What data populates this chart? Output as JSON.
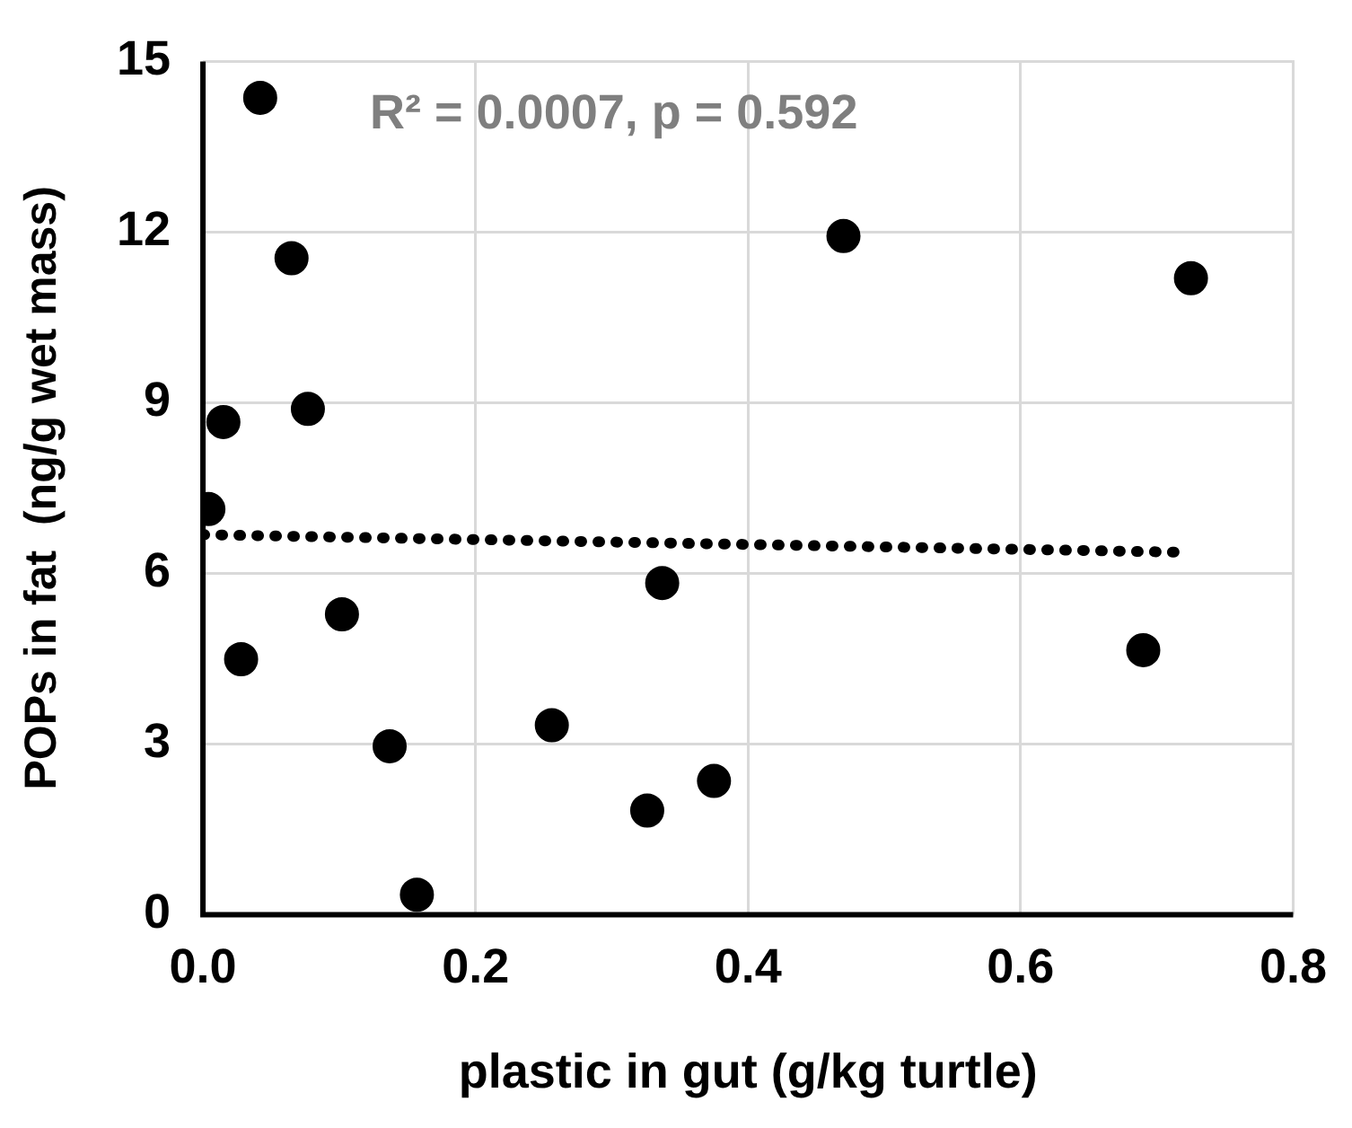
{
  "chart_data": {
    "type": "scatter",
    "xlabel": "plastic in gut (g/kg turtle)",
    "ylabel": "POPs in fat  (ng/g wet mass)",
    "annotations": [
      "R² = 0.0007, p = 0.592"
    ],
    "xlim": [
      0,
      0.8
    ],
    "xticks": [
      {
        "value": 0,
        "label": "0.0"
      },
      {
        "value": 0.2,
        "label": "0.2"
      },
      {
        "value": 0.4,
        "label": "0.4"
      },
      {
        "value": 0.6,
        "label": "0.6"
      },
      {
        "value": 0.8,
        "label": "0.8"
      }
    ],
    "ylim": [
      0,
      15
    ],
    "yticks": [
      0,
      3,
      6,
      9,
      12,
      15
    ],
    "grid": true,
    "legend": false,
    "marker": "circle",
    "series": [
      {
        "color": "#000000",
        "x": [
          0.042,
          0.065,
          0.015,
          0.077,
          0.004,
          0.028,
          0.102,
          0.137,
          0.157,
          0.256,
          0.326,
          0.337,
          0.375,
          0.47,
          0.725,
          0.69
        ],
        "values": [
          14.36,
          11.54,
          8.66,
          8.89,
          7.13,
          4.49,
          5.28,
          2.96,
          0.35,
          3.33,
          1.83,
          5.83,
          2.35,
          11.93,
          11.19,
          4.65
        ]
      },
      {
        "type": "line",
        "color": "#000000",
        "line_style": "dotted",
        "marker": "none",
        "x": [
          0,
          0.72
        ],
        "values": [
          6.68,
          6.37
        ]
      }
    ]
  }
}
